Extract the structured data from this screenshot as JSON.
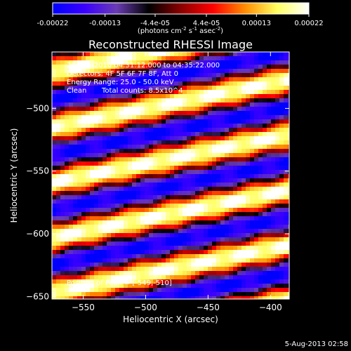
{
  "chart_data": {
    "type": "heatmap",
    "title": "Reconstructed RHESSI Image",
    "xlabel": "Heliocentric X (arcsec)",
    "ylabel": "Heliocentric Y (arcsec)",
    "xlim": [
      -575,
      -385
    ],
    "ylim": [
      -652,
      -455
    ],
    "x_ticks": [
      -550,
      -500,
      -450,
      -400
    ],
    "y_ticks": [
      -500,
      -550,
      -600,
      -650
    ],
    "grid": false,
    "colorbar": {
      "position": "top",
      "range": [
        -0.00022,
        0.00022
      ],
      "tick_values": [
        -0.00022,
        -0.00013,
        -4.4e-05,
        4.4e-05,
        0.00013,
        0.00022
      ],
      "tick_labels": [
        "-0.00022",
        "-0.00013",
        "-4.4e-05",
        "4.4e-05",
        "0.00013",
        "0.00022"
      ],
      "unit_label": "(photons cm",
      "unit_exp1": "-2",
      "unit_mid": " s",
      "unit_exp2": "-1",
      "unit_mid2": " asec",
      "unit_exp3": "-2",
      "unit_end": ")",
      "colormap": [
        "#0000ff",
        "#3a00ff",
        "#6a3cb4",
        "#000000",
        "#8a0000",
        "#ff0000",
        "#ff8c00",
        "#ffff60",
        "#ffffff"
      ]
    },
    "annotations": {
      "time_range": "20-Sep-2010 04:31:12.000 to 04:35:22.000",
      "detectors": "Detectors: 4F 5F 6F 7F 8F, Att 0",
      "energy": "Energy Range: 25.0 - 50.0 keV",
      "clean": "Clean",
      "total_counts": "Total counts: 8.5x10^4",
      "peak": "Position of Peak = [-549,-510]"
    },
    "pattern": {
      "description_source": "alternating bright/dark diagonal stripes (visible modulation)",
      "stripe_slope_arcsec_per_arcsec": 0.2,
      "stripe_period_arcsec": 44,
      "peak": [
        -549,
        -510
      ],
      "peak_value": 0.00022,
      "trough_value": -0.00022
    }
  },
  "footer": {
    "date": "5-Aug-2013 02:58"
  }
}
